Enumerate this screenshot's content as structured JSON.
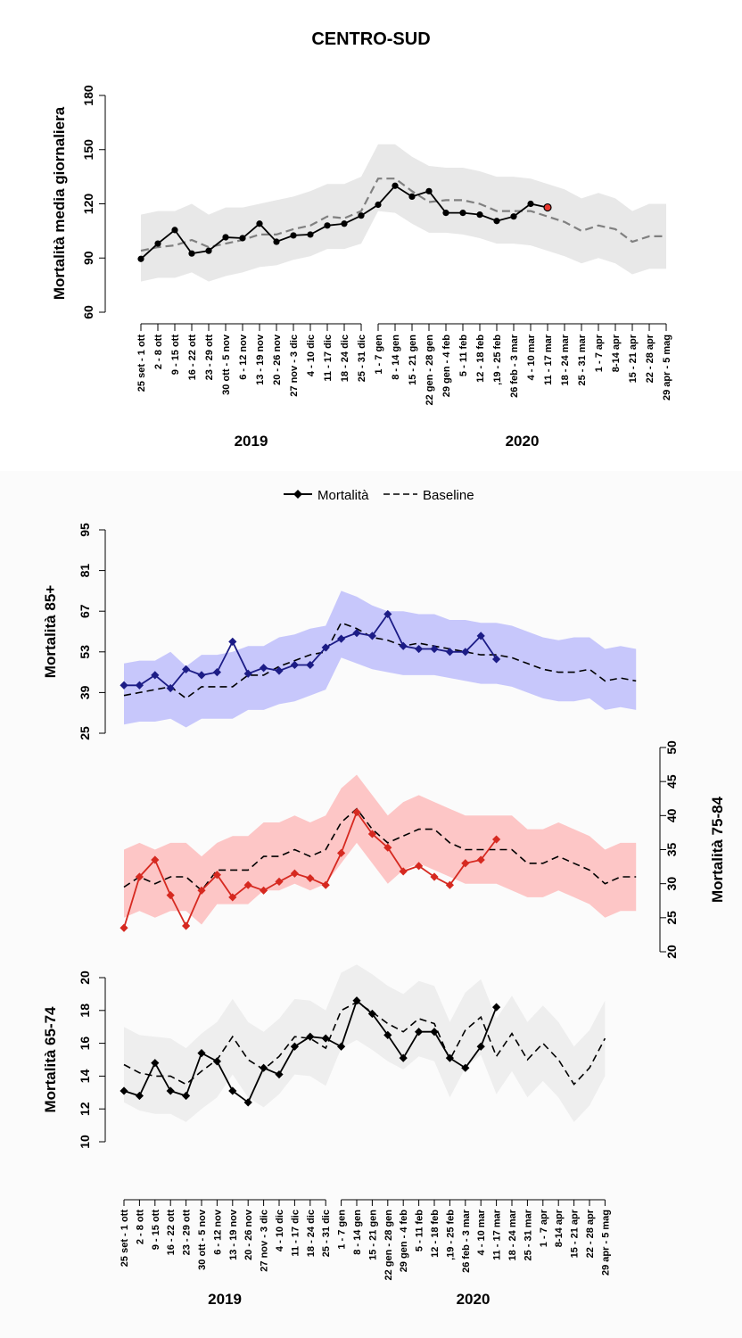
{
  "chart_data": [
    {
      "type": "line",
      "title": "CENTRO-SUD",
      "ylabel": "Mortalità media giornaliera",
      "ylim": [
        60,
        180
      ],
      "yticks": [
        60,
        90,
        120,
        150,
        180
      ],
      "groups": [
        {
          "name": "2019",
          "categories": [
            "25 set - 1 ott",
            "2 - 8 ott",
            "9 - 15 ott",
            "16 - 22 ott",
            "23 - 29 ott",
            "30 ott - 5 nov",
            "6 - 12 nov",
            "13 - 19 nov",
            "20 - 26 nov",
            "27 nov - 3 dic",
            "4 - 10 dic",
            "11 - 17 dic",
            "18 - 24 dic",
            "25 - 31 dic"
          ]
        },
        {
          "name": "2020",
          "categories": [
            "1 - 7 gen",
            "8 - 14 gen",
            "15 - 21 gen",
            "22 gen - 28 gen",
            "29 gen - 4 feb",
            "5 - 11 feb",
            "12 - 18 feb",
            ",19 - 25 feb",
            "26 feb - 3 mar",
            "4 - 10 mar",
            "11 - 17 mar",
            "18 - 24 mar",
            "25 - 31 mar",
            "1 - 7 apr",
            "8-14 apr",
            "15 - 21 apr",
            "22 - 28 apr",
            "29 apr - 5 mag"
          ]
        }
      ],
      "series": [
        {
          "values": [
            89.5,
            98,
            105.5,
            92.5,
            94,
            101.5,
            101,
            109,
            99,
            102.5,
            103,
            108,
            109,
            113.5,
            119.5,
            130,
            124,
            127,
            115,
            115,
            114,
            110.5,
            113,
            120,
            118
          ]
        },
        {
          "values": [
            94,
            96,
            97,
            100,
            96,
            98,
            100,
            103,
            103,
            106,
            108,
            113,
            112,
            116,
            134,
            134,
            127,
            121,
            122,
            122,
            120,
            116,
            116,
            116,
            113,
            110,
            105,
            108,
            106,
            99,
            102,
            102
          ],
          "style": "dashed"
        },
        {
          "upper": [
            114,
            116,
            116,
            120,
            114,
            118,
            118,
            120,
            122,
            124,
            127,
            131,
            131,
            135,
            153,
            153,
            146,
            141,
            140,
            140,
            138,
            135,
            135,
            134,
            131,
            128,
            123,
            126,
            123,
            116,
            120,
            120
          ],
          "lower": [
            77,
            79,
            79,
            82,
            77,
            80,
            82,
            85,
            86,
            89,
            91,
            95,
            95,
            98,
            116,
            115,
            109,
            104,
            104,
            103,
            101,
            98,
            98,
            97,
            94,
            91,
            87,
            90,
            87,
            81,
            84,
            84
          ],
          "style": "band"
        }
      ],
      "highlight_last_point": true,
      "colors": {
        "line": "#000000",
        "baseline": "#808080",
        "band": "#e8e8e8",
        "highlight": "#e8382f"
      }
    },
    {
      "type": "line",
      "legend": [
        "Mortalità",
        "Baseline"
      ],
      "legend_position": "top",
      "panels": [
        {
          "ylabel": "Mortalità 85+",
          "axis": "left",
          "ylim": [
            25,
            95
          ],
          "yticks": [
            25,
            39,
            53,
            67,
            81,
            95
          ],
          "color": "#1c1c86",
          "band_color": "#c7c7fb",
          "mortalita": [
            41.5,
            41.5,
            45,
            40.5,
            47,
            45,
            46,
            56.5,
            45.5,
            47.5,
            46.5,
            48.5,
            48.5,
            54.5,
            57.5,
            59.5,
            58.5,
            66,
            55,
            54,
            54,
            53,
            53,
            58.5,
            50.5
          ],
          "baseline": [
            38,
            39,
            40,
            41,
            37,
            41,
            41,
            41,
            45,
            45,
            48,
            50,
            52,
            53,
            63,
            61,
            58,
            57,
            55,
            56,
            55,
            54,
            53,
            52,
            52,
            51,
            49,
            47,
            46,
            46,
            47,
            43,
            44,
            43
          ],
          "upper": [
            49,
            50,
            50,
            53,
            48,
            52,
            52,
            53,
            55,
            55,
            58,
            59,
            61,
            62,
            74,
            72,
            69,
            67,
            67,
            66,
            66,
            64,
            64,
            63,
            63,
            62,
            60,
            58,
            57,
            58,
            58,
            54,
            55,
            54
          ],
          "lower": [
            28,
            29,
            29,
            30,
            27,
            30,
            30,
            30,
            33,
            33,
            35,
            36,
            38,
            40,
            51,
            49,
            47,
            46,
            45,
            45,
            45,
            44,
            43,
            42,
            42,
            41,
            39,
            37,
            36,
            36,
            37,
            33,
            34,
            33
          ]
        },
        {
          "ylabel": "Mortalità 75-84",
          "axis": "right",
          "ylim": [
            20,
            50
          ],
          "yticks": [
            20,
            25,
            30,
            35,
            40,
            45,
            50
          ],
          "color": "#d62920",
          "band_color": "#fdc6c6",
          "mortalita": [
            23.5,
            31,
            33.5,
            28.3,
            23.8,
            29,
            31.3,
            28,
            29.8,
            29,
            30.3,
            31.5,
            30.8,
            29.8,
            34.5,
            40.5,
            37.3,
            35.3,
            31.8,
            32.6,
            31,
            29.8,
            33,
            33.5,
            36.5
          ],
          "baseline": [
            29.5,
            31,
            30,
            31,
            31,
            29,
            32,
            32,
            32,
            34,
            34,
            35,
            34,
            35,
            39,
            41,
            38,
            36,
            37,
            38,
            38,
            36,
            35,
            35,
            35,
            35,
            33,
            33,
            34,
            33,
            32,
            30,
            31,
            31
          ],
          "upper": [
            35,
            36,
            35,
            36,
            36,
            34,
            36,
            37,
            37,
            39,
            39,
            40,
            39,
            40,
            44,
            46,
            43,
            40,
            42,
            43,
            42,
            41,
            40,
            40,
            40,
            40,
            38,
            38,
            39,
            38,
            37,
            35,
            36,
            36
          ],
          "lower": [
            25,
            26,
            25,
            26,
            26,
            24,
            27,
            27,
            27,
            29,
            29,
            30,
            29,
            30,
            33,
            36,
            33,
            30,
            32,
            33,
            32,
            31,
            30,
            30,
            30,
            29,
            28,
            28,
            29,
            28,
            27,
            25,
            26,
            26
          ]
        },
        {
          "ylabel": "Mortalità 65-74",
          "axis": "left",
          "ylim": [
            10,
            20
          ],
          "yticks": [
            10,
            12,
            14,
            16,
            18,
            20
          ],
          "color": "#000000",
          "band_color": "#eeeeee",
          "mortalita": [
            13.1,
            12.8,
            14.8,
            13.1,
            12.8,
            15.4,
            14.9,
            13.1,
            12.4,
            14.5,
            14.1,
            15.8,
            16.4,
            16.3,
            15.8,
            18.6,
            17.8,
            16.5,
            15.1,
            16.7,
            16.7,
            15.1,
            14.5,
            15.8,
            18.2
          ],
          "baseline": [
            14.7,
            14.2,
            14,
            14,
            13.5,
            14.3,
            15,
            16.4,
            15,
            14.4,
            15.2,
            16.4,
            16.3,
            15.7,
            18,
            18.5,
            17.9,
            17.2,
            16.7,
            17.5,
            17.2,
            15,
            16.8,
            17.6,
            15.2,
            16.6,
            15,
            16,
            15,
            13.5,
            14.5,
            16.3
          ],
          "upper": [
            17,
            16.5,
            16.4,
            16.3,
            15.7,
            16.6,
            17.3,
            18.7,
            17.3,
            16.7,
            17.5,
            18.7,
            18.6,
            18,
            20.3,
            20.8,
            20.2,
            19.5,
            19,
            19.8,
            19.5,
            17.3,
            19.1,
            19.9,
            17.5,
            18.9,
            17.3,
            18.3,
            17.3,
            15.8,
            16.8,
            18.6
          ],
          "lower": [
            12.4,
            11.9,
            11.7,
            11.7,
            11.2,
            12,
            12.7,
            14.1,
            12.7,
            12.1,
            12.9,
            14.1,
            14,
            13.4,
            15.7,
            16.2,
            15.6,
            14.9,
            14.4,
            15.2,
            14.9,
            12.7,
            14.5,
            15.3,
            12.9,
            14.3,
            12.7,
            13.7,
            12.7,
            11.2,
            12.2,
            14
          ]
        }
      ],
      "groups": [
        {
          "name": "2019",
          "categories": [
            "25 set - 1 ott",
            "2 - 8 ott",
            "9 - 15 ott",
            "16 - 22 ott",
            "23 - 29 ott",
            "30 ott - 5 nov",
            "6 - 12 nov",
            "13 - 19 nov",
            "20 - 26 nov",
            "27 nov - 3 dic",
            "4 - 10 dic",
            "11 - 17 dic",
            "18 - 24 dic",
            "25 - 31 dic"
          ]
        },
        {
          "name": "2020",
          "categories": [
            "1 - 7 gen",
            "8 - 14 gen",
            "15 - 21 gen",
            "22 gen - 28 gen",
            "29 gen - 4 feb",
            "5 - 11 feb",
            "12 - 18 feb",
            ",19 - 25 feb",
            "26 feb - 3 mar",
            "4 - 10 mar",
            "11 - 17 mar",
            "18 - 24 mar",
            "25 - 31 mar",
            "1 - 7 apr",
            "8-14 apr",
            "15 - 21 apr",
            "22 - 28 apr",
            "29 apr - 5 mag"
          ]
        }
      ]
    }
  ]
}
